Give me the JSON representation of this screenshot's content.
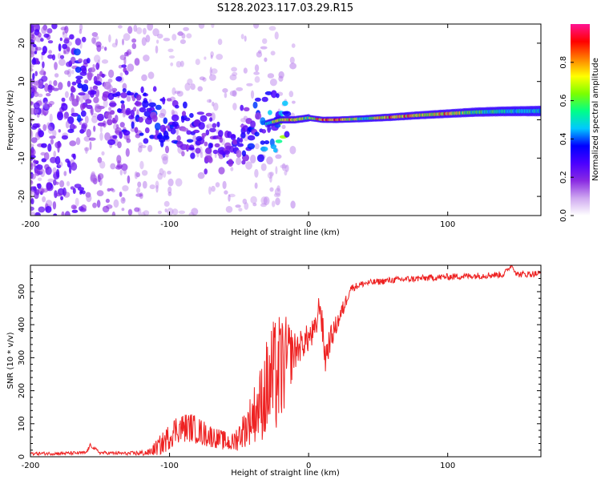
{
  "title": "S128.2023.117.03.29.R15",
  "colors": {
    "snr_line": "#ee2222",
    "axis": "#000000",
    "colormap": [
      "#ffffff",
      "#cfa8f0",
      "#8a2be2",
      "#4b00ff",
      "#0000ff",
      "#00c8ff",
      "#00ff88",
      "#7cff00",
      "#ffff00",
      "#ff8000",
      "#ff0000",
      "#ff1493"
    ]
  },
  "chart_data": [
    {
      "type": "heatmap",
      "title": "",
      "xlabel": "Height of straight line (km)",
      "ylabel": "Frequency (Hz)",
      "xlim": [
        -200,
        167
      ],
      "ylim": [
        -25,
        25
      ],
      "xticks": [
        -200,
        -100,
        0,
        100
      ],
      "yticks": [
        -20,
        -10,
        0,
        10,
        20
      ],
      "colorbar": {
        "label": "Normalized spectral amplitude",
        "range": [
          0,
          1
        ],
        "ticks": [
          0.0,
          0.2,
          0.4,
          0.6,
          0.8
        ]
      },
      "ridge": {
        "description": "dominant spectral peak frequency vs height",
        "x": [
          -165,
          -150,
          -135,
          -120,
          -105,
          -90,
          -75,
          -60,
          -45,
          -30,
          -20,
          -10,
          0,
          10,
          20,
          40,
          60,
          80,
          100,
          120,
          140,
          167
        ],
        "freq": [
          8,
          6,
          4,
          2,
          -1,
          -4,
          -6,
          -7,
          -4,
          -1,
          0,
          0,
          0.5,
          0,
          0,
          0.3,
          0.7,
          1.2,
          1.6,
          2.0,
          2.2,
          2.3
        ],
        "amplitude": [
          0.5,
          0.35,
          0.45,
          0.45,
          0.5,
          0.45,
          0.4,
          0.4,
          0.45,
          0.55,
          0.8,
          0.85,
          0.65,
          0.9,
          0.95,
          0.6,
          0.9,
          0.8,
          0.85,
          0.6,
          0.55,
          0.5
        ]
      }
    },
    {
      "type": "line",
      "title": "",
      "xlabel": "Height of straight line (km)",
      "ylabel": "SNR (10 * v/v)",
      "xlim": [
        -200,
        167
      ],
      "ylim": [
        0,
        580
      ],
      "xticks": [
        -200,
        -100,
        0,
        100
      ],
      "yticks": [
        0,
        100,
        200,
        300,
        400,
        500
      ],
      "series": [
        {
          "name": "SNR",
          "x": [
            -200,
            -180,
            -160,
            -157,
            -150,
            -130,
            -115,
            -105,
            -95,
            -85,
            -75,
            -65,
            -55,
            -45,
            -35,
            -28,
            -20,
            -15,
            -10,
            -5,
            0,
            5,
            8,
            12,
            15,
            20,
            25,
            30,
            40,
            60,
            80,
            100,
            120,
            140,
            146,
            150,
            167
          ],
          "y": [
            10,
            10,
            12,
            35,
            12,
            10,
            12,
            40,
            85,
            90,
            70,
            55,
            40,
            90,
            160,
            220,
            260,
            300,
            320,
            340,
            360,
            380,
            470,
            300,
            350,
            400,
            450,
            510,
            525,
            535,
            540,
            545,
            548,
            552,
            580,
            552,
            555
          ],
          "noise_amplitude": [
            5,
            5,
            5,
            5,
            5,
            5,
            10,
            35,
            45,
            45,
            40,
            30,
            30,
            60,
            110,
            180,
            180,
            120,
            60,
            45,
            45,
            45,
            40,
            60,
            40,
            30,
            25,
            12,
            10,
            10,
            10,
            10,
            10,
            10,
            5,
            10,
            10
          ]
        }
      ]
    }
  ]
}
